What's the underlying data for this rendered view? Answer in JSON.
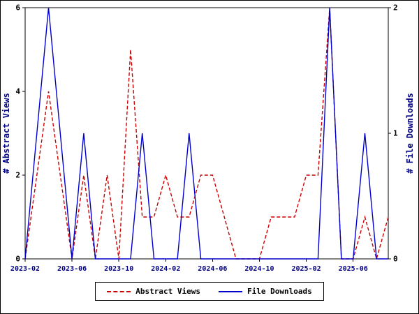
{
  "chart_data": {
    "type": "line",
    "x": [
      "2023-02",
      "2023-03",
      "2023-04",
      "2023-05",
      "2023-06",
      "2023-07",
      "2023-08",
      "2023-09",
      "2023-10",
      "2023-11",
      "2023-12",
      "2024-01",
      "2024-02",
      "2024-03",
      "2024-04",
      "2024-05",
      "2024-06",
      "2024-07",
      "2024-08",
      "2024-09",
      "2024-10",
      "2024-11",
      "2024-12",
      "2025-01",
      "2025-02",
      "2025-03",
      "2025-04",
      "2025-05",
      "2025-06",
      "2025-07",
      "2025-08",
      "2025-09"
    ],
    "x_tick_labels": [
      "2023-02",
      "2023-06",
      "2023-10",
      "2024-02",
      "2024-06",
      "2024-10",
      "2025-02",
      "2025-06"
    ],
    "x_tick_indices": [
      0,
      4,
      8,
      12,
      16,
      20,
      24,
      28
    ],
    "left_axis": {
      "label": "# Abstract Views",
      "min": 0,
      "max": 6,
      "ticks": [
        0,
        2,
        4,
        6
      ]
    },
    "right_axis": {
      "label": "# File Downloads",
      "min": 0,
      "max": 2,
      "ticks": [
        0,
        1,
        2
      ]
    },
    "series": [
      {
        "name": "Abstract Views",
        "axis": "left",
        "color": "#cc0000",
        "style": "dashed",
        "values": [
          0,
          2,
          4,
          2,
          0,
          2,
          0,
          2,
          0,
          5,
          1,
          1,
          2,
          1,
          1,
          2,
          2,
          1,
          0,
          0,
          0,
          1,
          1,
          1,
          2,
          2,
          6,
          0,
          0,
          1,
          0,
          1
        ]
      },
      {
        "name": "File Downloads",
        "axis": "right",
        "color": "#0000cc",
        "style": "solid",
        "values": [
          0,
          1,
          2,
          1,
          0,
          1,
          0,
          0,
          0,
          0,
          1,
          0,
          0,
          0,
          1,
          0,
          0,
          0,
          0,
          0,
          0,
          0,
          0,
          0,
          0,
          0,
          2,
          0,
          0,
          1,
          0,
          0
        ]
      }
    ],
    "legend": {
      "position": "bottom"
    },
    "grid": false,
    "background": "#ffffff",
    "plot_border_color": "#000000",
    "axis_title_color": "#000080",
    "x_tick_label_color": "#000080",
    "y_tick_label_color": "#000000"
  }
}
